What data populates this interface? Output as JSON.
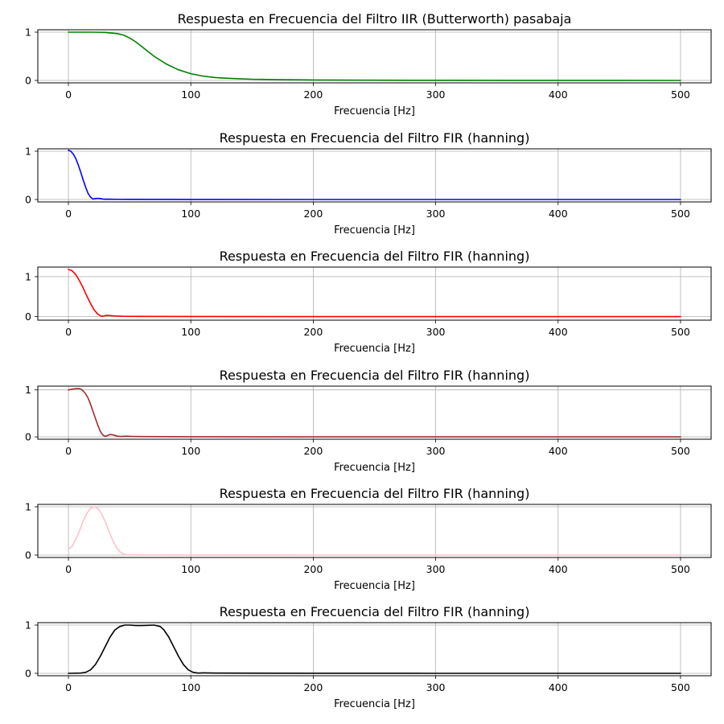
{
  "chart_data": [
    {
      "type": "line",
      "title": "Respuesta en Frecuencia del Filtro IIR (Butterworth) pasabaja",
      "xlabel": "Frecuencia [Hz]",
      "ylabel": "",
      "xlim": [
        -25,
        525
      ],
      "ylim": [
        -0.05,
        1.05
      ],
      "xticks": [
        0,
        100,
        200,
        300,
        400,
        500
      ],
      "yticks": [
        0,
        1
      ],
      "grid": true,
      "color": "#008000",
      "x": [
        0,
        10,
        20,
        30,
        40,
        45,
        50,
        55,
        60,
        65,
        70,
        75,
        80,
        90,
        100,
        110,
        120,
        130,
        140,
        150,
        175,
        200,
        250,
        300,
        400,
        500
      ],
      "y": [
        1.0,
        1.0,
        1.0,
        0.995,
        0.97,
        0.94,
        0.88,
        0.8,
        0.7,
        0.6,
        0.5,
        0.42,
        0.34,
        0.22,
        0.14,
        0.09,
        0.06,
        0.045,
        0.035,
        0.025,
        0.015,
        0.01,
        0.005,
        0.003,
        0.001,
        0.0
      ]
    },
    {
      "type": "line",
      "title": "Respuesta en Frecuencia del Filtro FIR (hanning)",
      "xlabel": "Frecuencia [Hz]",
      "ylabel": "",
      "xlim": [
        -25,
        525
      ],
      "ylim": [
        -0.05,
        1.05
      ],
      "xticks": [
        0,
        100,
        200,
        300,
        400,
        500
      ],
      "yticks": [
        0,
        1
      ],
      "grid": true,
      "color": "#0000ff",
      "x": [
        0,
        2,
        4,
        6,
        8,
        10,
        12,
        14,
        16,
        18,
        20,
        22,
        24,
        26,
        28,
        30,
        32,
        35,
        40,
        50,
        100,
        200,
        300,
        400,
        500
      ],
      "y": [
        1.02,
        1.0,
        0.94,
        0.85,
        0.72,
        0.57,
        0.41,
        0.26,
        0.13,
        0.05,
        0.01,
        0.02,
        0.025,
        0.02,
        0.01,
        0.006,
        0.008,
        0.006,
        0.004,
        0.003,
        0.001,
        0.0,
        0.0,
        0.0,
        0.0
      ]
    },
    {
      "type": "line",
      "title": "Respuesta en Frecuencia del Filtro FIR (hanning)",
      "xlabel": "Frecuencia [Hz]",
      "ylabel": "",
      "xlim": [
        -25,
        525
      ],
      "ylim": [
        -0.09,
        1.24
      ],
      "xticks": [
        0,
        100,
        200,
        300,
        400,
        500
      ],
      "yticks": [
        0,
        1
      ],
      "grid": true,
      "color": "#ff0000",
      "x": [
        0,
        3,
        6,
        9,
        12,
        15,
        18,
        21,
        24,
        27,
        29,
        31,
        34,
        38,
        45,
        60,
        100,
        200,
        300,
        400,
        500
      ],
      "y": [
        1.18,
        1.15,
        1.05,
        0.9,
        0.72,
        0.52,
        0.33,
        0.17,
        0.06,
        0.01,
        0.015,
        0.03,
        0.025,
        0.015,
        0.008,
        0.005,
        0.002,
        0.0,
        0.0,
        0.0,
        0.0
      ]
    },
    {
      "type": "line",
      "title": "Respuesta en Frecuencia del Filtro FIR (hanning)",
      "xlabel": "Frecuencia [Hz]",
      "ylabel": "",
      "xlim": [
        -25,
        525
      ],
      "ylim": [
        -0.05,
        1.08
      ],
      "xticks": [
        0,
        100,
        200,
        300,
        400,
        500
      ],
      "yticks": [
        0,
        1
      ],
      "grid": true,
      "color": "#a52a2a",
      "x": [
        0,
        4,
        8,
        10,
        12,
        14,
        16,
        18,
        20,
        22,
        24,
        26,
        28,
        30,
        32,
        34,
        36,
        38,
        40,
        43,
        47,
        52,
        60,
        80,
        100,
        200,
        300,
        400,
        500
      ],
      "y": [
        1.0,
        1.02,
        1.03,
        1.02,
        0.98,
        0.92,
        0.83,
        0.7,
        0.55,
        0.4,
        0.25,
        0.12,
        0.04,
        0.01,
        0.03,
        0.05,
        0.045,
        0.03,
        0.015,
        0.008,
        0.015,
        0.01,
        0.006,
        0.004,
        0.002,
        0.0,
        0.0,
        0.0,
        0.0
      ]
    },
    {
      "type": "line",
      "title": "Respuesta en Frecuencia del Filtro FIR (hanning)",
      "xlabel": "Frecuencia [Hz]",
      "ylabel": "",
      "xlim": [
        -25,
        525
      ],
      "ylim": [
        -0.05,
        1.05
      ],
      "xticks": [
        0,
        100,
        200,
        300,
        400,
        500
      ],
      "yticks": [
        0,
        1
      ],
      "grid": true,
      "color": "#ffc0cb",
      "x": [
        0,
        3,
        6,
        9,
        12,
        15,
        18,
        21,
        24,
        27,
        30,
        33,
        36,
        39,
        42,
        45,
        48,
        55,
        70,
        100,
        200,
        300,
        400,
        500
      ],
      "y": [
        0.12,
        0.18,
        0.32,
        0.5,
        0.7,
        0.86,
        0.97,
        1.0,
        0.97,
        0.86,
        0.7,
        0.5,
        0.32,
        0.17,
        0.07,
        0.02,
        0.005,
        0.003,
        0.002,
        0.001,
        0.0,
        0.0,
        0.0,
        0.0
      ]
    },
    {
      "type": "line",
      "title": "Respuesta en Frecuencia del Filtro FIR (hanning)",
      "xlabel": "Frecuencia [Hz]",
      "ylabel": "",
      "xlim": [
        -25,
        525
      ],
      "ylim": [
        -0.05,
        1.05
      ],
      "xticks": [
        0,
        100,
        200,
        300,
        400,
        500
      ],
      "yticks": [
        0,
        1
      ],
      "grid": true,
      "color": "#000000",
      "x": [
        0,
        10,
        14,
        18,
        22,
        26,
        30,
        34,
        38,
        42,
        46,
        50,
        55,
        60,
        65,
        70,
        75,
        78,
        82,
        86,
        90,
        94,
        98,
        102,
        106,
        110,
        120,
        150,
        200,
        300,
        400,
        500
      ],
      "y": [
        0.0,
        0.005,
        0.02,
        0.07,
        0.18,
        0.35,
        0.55,
        0.75,
        0.9,
        0.97,
        1.0,
        1.0,
        0.99,
        0.99,
        0.995,
        1.0,
        0.97,
        0.9,
        0.75,
        0.55,
        0.35,
        0.18,
        0.07,
        0.02,
        0.005,
        0.01,
        0.006,
        0.003,
        0.001,
        0.0,
        0.0,
        0.0
      ]
    }
  ]
}
